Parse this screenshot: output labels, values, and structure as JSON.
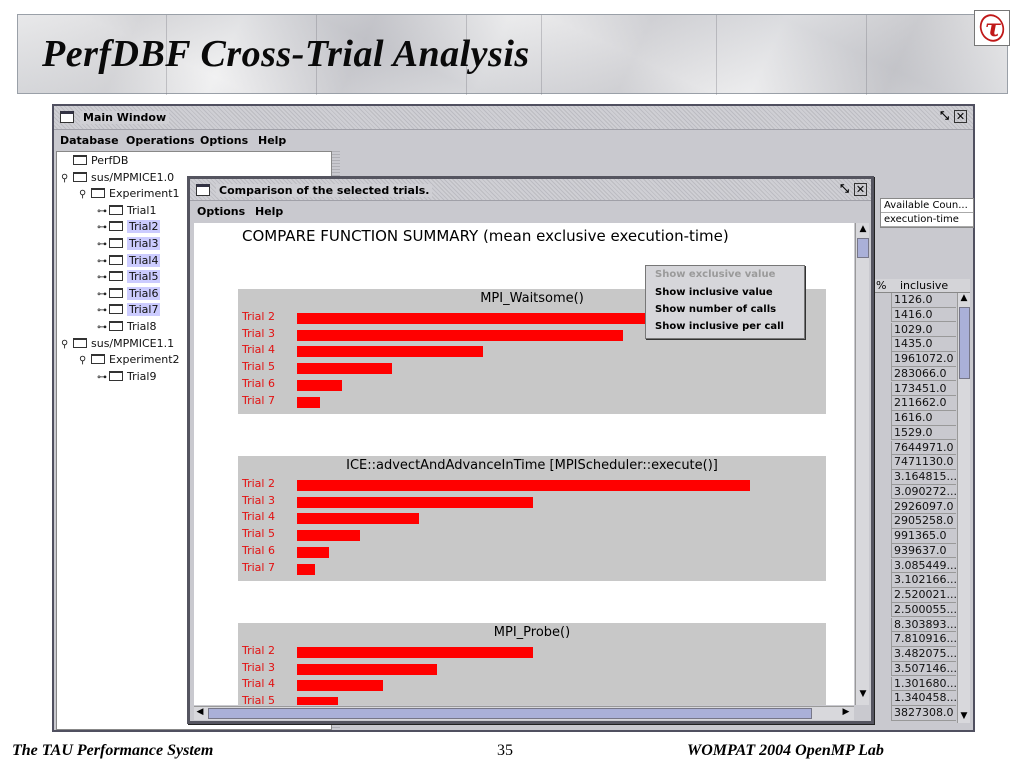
{
  "slide": {
    "title": "PerfDBF Cross-Trial Analysis",
    "logo_glyph": "τ",
    "footer_left": "The TAU Performance System",
    "page_number": "35",
    "footer_right": "WOMPAT 2004 OpenMP Lab"
  },
  "main_window": {
    "title": "Main Window",
    "menu": [
      "Database",
      "Operations",
      "Options",
      "Help"
    ],
    "tree": [
      {
        "label": "PerfDB",
        "level": 0,
        "handle": ""
      },
      {
        "label": "sus/MPMICE1.0",
        "level": 0,
        "handle": "⚲"
      },
      {
        "label": "Experiment1",
        "level": 1,
        "handle": "⚲"
      },
      {
        "label": "Trial1",
        "level": 2,
        "handle": "⊶",
        "selected": false
      },
      {
        "label": "Trial2",
        "level": 2,
        "handle": "⊶",
        "selected": true
      },
      {
        "label": "Trial3",
        "level": 2,
        "handle": "⊶",
        "selected": true
      },
      {
        "label": "Trial4",
        "level": 2,
        "handle": "⊶",
        "selected": true
      },
      {
        "label": "Trial5",
        "level": 2,
        "handle": "⊶",
        "selected": true
      },
      {
        "label": "Trial6",
        "level": 2,
        "handle": "⊶",
        "selected": true
      },
      {
        "label": "Trial7",
        "level": 2,
        "handle": "⊶",
        "selected": true
      },
      {
        "label": "Trial8",
        "level": 2,
        "handle": "⊶",
        "selected": false
      },
      {
        "label": "sus/MPMICE1.1",
        "level": 0,
        "handle": "⚲"
      },
      {
        "label": "Experiment2",
        "level": 1,
        "handle": "⚲"
      },
      {
        "label": "Trial9",
        "level": 2,
        "handle": "⊶",
        "selected": false
      }
    ],
    "counters": {
      "header": "Available Coun...",
      "item": "execution-time"
    },
    "inclusive": {
      "percent_header": "%",
      "header": "inclusive",
      "values": [
        "1126.0",
        "1416.0",
        "1029.0",
        "1435.0",
        "1961072.0",
        "283066.0",
        "173451.0",
        "211662.0",
        "1616.0",
        "1529.0",
        "7644971.0",
        "7471130.0",
        "3.164815...",
        "3.090272...",
        "2926097.0",
        "2905258.0",
        "991365.0",
        "939637.0",
        "3.085449...",
        "3.102166...",
        "2.520021...",
        "2.500055...",
        "8.303893...",
        "7.810916...",
        "3.482075...",
        "3.507146...",
        "1.301680...",
        "1.340458...",
        "3827308.0"
      ]
    }
  },
  "dialog": {
    "title": "Comparison of the selected trials.",
    "menu": [
      "Options",
      "Help"
    ],
    "summary_title": "COMPARE FUNCTION SUMMARY (mean exclusive execution-time)",
    "popup_menu": [
      {
        "label": "Show exclusive value",
        "enabled": false
      },
      {
        "label": "Show inclusive value",
        "enabled": true
      },
      {
        "label": "Show number of calls",
        "enabled": true
      },
      {
        "label": "Show inclusive per call",
        "enabled": true
      }
    ]
  },
  "chart_data": [
    {
      "type": "bar",
      "title": "MPI_Waitsome()",
      "categories": [
        "Trial 2",
        "Trial 3",
        "Trial 4",
        "Trial 5",
        "Trial 6",
        "Trial 7"
      ],
      "values": [
        100,
        72,
        41,
        21,
        10,
        5
      ],
      "bar_color": "#ff0000"
    },
    {
      "type": "bar",
      "title": "ICE::advectAndAdvanceInTime [MPIScheduler::execute()]",
      "categories": [
        "Trial 2",
        "Trial 3",
        "Trial 4",
        "Trial 5",
        "Trial 6",
        "Trial 7"
      ],
      "values": [
        100,
        52,
        27,
        14,
        7,
        4
      ],
      "bar_color": "#ff0000"
    },
    {
      "type": "bar",
      "title": "MPI_Probe()",
      "categories": [
        "Trial 2",
        "Trial 3",
        "Trial 4",
        "Trial 5"
      ],
      "values": [
        52,
        31,
        19,
        9
      ],
      "bar_color": "#ff0000"
    }
  ]
}
